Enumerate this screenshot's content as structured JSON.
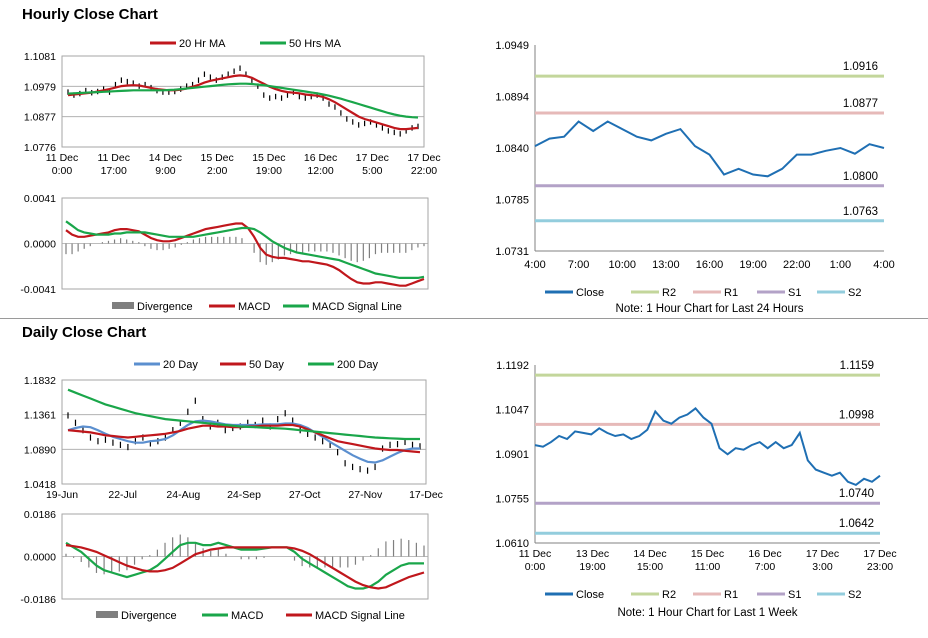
{
  "sections": {
    "hourly_title": "Hourly Close Chart",
    "daily_title": "Daily Close Chart"
  },
  "colors": {
    "price_bar": "#000000",
    "ma_red": "#c0171c",
    "ma_green": "#1aa64a",
    "ma_blue": "#5b8fcf",
    "close_line": "#1f6fb3",
    "r2": "#c3d69b",
    "r1": "#e6b9b8",
    "s1": "#b3a2c7",
    "s2": "#93cddd",
    "divergence": "#7f7f7f",
    "gridline": "#a6a6a6"
  },
  "chart_data": [
    {
      "id": "hourly-price",
      "type": "line",
      "legend": [
        "20 Hr MA",
        "50 Hrs MA"
      ],
      "ylim": [
        1.0776,
        1.1081
      ],
      "yticks": [
        "1.1081",
        "1.0979",
        "1.0877",
        "1.0776"
      ],
      "xticks": [
        "11 Dec\n0:00",
        "11 Dec\n17:00",
        "14 Dec\n9:00",
        "15 Dec\n2:00",
        "15 Dec\n19:00",
        "16 Dec\n12:00",
        "17 Dec\n5:00",
        "17 Dec\n22:00"
      ],
      "close": [
        1.096,
        1.095,
        1.0955,
        1.0965,
        1.0958,
        1.0962,
        1.097,
        1.096,
        1.0985,
        1.1,
        1.0995,
        1.099,
        1.098,
        1.0985,
        1.0975,
        1.0965,
        1.096,
        1.096,
        1.0962,
        1.097,
        1.098,
        1.0985,
        1.1,
        1.102,
        1.101,
        1.1,
        1.101,
        1.102,
        1.103,
        1.104,
        1.102,
        1.1,
        1.098,
        1.095,
        1.094,
        1.0945,
        1.094,
        1.095,
        1.096,
        1.0945,
        1.094,
        1.0945,
        1.095,
        1.094,
        1.092,
        1.091,
        1.089,
        1.087,
        1.086,
        1.085,
        1.0855,
        1.086,
        1.085,
        1.084,
        1.083,
        1.0825,
        1.082,
        1.083,
        1.084,
        1.0845
      ],
      "series": [
        {
          "name": "20 Hr MA",
          "values": [
            1.095,
            1.0952,
            1.0954,
            1.0956,
            1.0958,
            1.0962,
            1.0966,
            1.097,
            1.0975,
            1.098,
            1.0982,
            1.0983,
            1.0982,
            1.0978,
            1.0974,
            1.097,
            1.0968,
            1.0966,
            1.0966,
            1.0968,
            1.0972,
            1.0978,
            1.0984,
            1.0992,
            1.0998,
            1.1002,
            1.1006,
            1.101,
            1.1014,
            1.1016,
            1.1014,
            1.1008,
            1.0998,
            1.0988,
            1.0978,
            1.097,
            1.0964,
            1.096,
            1.0958,
            1.0956,
            1.0952,
            1.095,
            1.0948,
            1.0944,
            1.0936,
            1.0926,
            1.0914,
            1.0902,
            1.089,
            1.0878,
            1.087,
            1.0864,
            1.0858,
            1.0852,
            1.0846,
            1.084,
            1.0836,
            1.0836,
            1.0838,
            1.084
          ]
        },
        {
          "name": "50 Hrs MA",
          "values": [
            1.0955,
            1.0956,
            1.0957,
            1.0958,
            1.0959,
            1.096,
            1.0961,
            1.0962,
            1.0963,
            1.0964,
            1.0965,
            1.0966,
            1.0966,
            1.0966,
            1.0966,
            1.0966,
            1.0966,
            1.0967,
            1.0968,
            1.097,
            1.0972,
            1.0974,
            1.0976,
            1.0978,
            1.098,
            1.0982,
            1.0984,
            1.0986,
            1.0987,
            1.0988,
            1.0988,
            1.0987,
            1.0985,
            1.0983,
            1.098,
            1.0977,
            1.0974,
            1.0971,
            1.0968,
            1.0965,
            1.0962,
            1.0959,
            1.0956,
            1.0952,
            1.0948,
            1.0943,
            1.0938,
            1.0932,
            1.0926,
            1.092,
            1.0914,
            1.0908,
            1.0902,
            1.0896,
            1.089,
            1.0885,
            1.0881,
            1.0878,
            1.0876,
            1.0875
          ]
        }
      ]
    },
    {
      "id": "hourly-macd",
      "type": "line",
      "legend": [
        "Divergence",
        "MACD",
        "MACD Signal Line"
      ],
      "ylim": [
        -0.0041,
        0.0041
      ],
      "yticks": [
        "0.0041",
        "0.0000",
        "-0.0041"
      ],
      "series": [
        {
          "name": "MACD",
          "values": [
            0.0012,
            0.0008,
            0.0006,
            0.0006,
            0.0007,
            0.0008,
            0.0009,
            0.001,
            0.0012,
            0.0013,
            0.0013,
            0.0012,
            0.0011,
            0.0008,
            0.0005,
            0.0003,
            0.0002,
            0.0002,
            0.0003,
            0.0005,
            0.0007,
            0.0009,
            0.0011,
            0.0013,
            0.0014,
            0.0015,
            0.0016,
            0.0017,
            0.0018,
            0.0018,
            0.0014,
            0.0006,
            -0.0004,
            -0.001,
            -0.0012,
            -0.0013,
            -0.0013,
            -0.0014,
            -0.0015,
            -0.0016,
            -0.0016,
            -0.0017,
            -0.0018,
            -0.0019,
            -0.0021,
            -0.0024,
            -0.0028,
            -0.0032,
            -0.0035,
            -0.0036,
            -0.0036,
            -0.0035,
            -0.0035,
            -0.0036,
            -0.0037,
            -0.0038,
            -0.0038,
            -0.0036,
            -0.0034,
            -0.0032
          ]
        },
        {
          "name": "MACD Signal Line",
          "values": [
            0.002,
            0.0016,
            0.0012,
            0.001,
            0.0009,
            0.0008,
            0.0008,
            0.0008,
            0.0009,
            0.0009,
            0.001,
            0.001,
            0.001,
            0.001,
            0.0009,
            0.0008,
            0.0007,
            0.0006,
            0.0006,
            0.0006,
            0.0006,
            0.0006,
            0.0007,
            0.0008,
            0.0009,
            0.001,
            0.0011,
            0.0012,
            0.0013,
            0.0014,
            0.0014,
            0.0013,
            0.001,
            0.0006,
            0.0002,
            -0.0001,
            -0.0004,
            -0.0006,
            -0.0008,
            -0.0009,
            -0.001,
            -0.0011,
            -0.0012,
            -0.0013,
            -0.0014,
            -0.0015,
            -0.0017,
            -0.0019,
            -0.0021,
            -0.0023,
            -0.0025,
            -0.0027,
            -0.0028,
            -0.0029,
            -0.003,
            -0.0031,
            -0.0031,
            -0.0031,
            -0.0031,
            -0.003
          ]
        }
      ]
    },
    {
      "id": "hourly-close-24h",
      "type": "line",
      "ylim": [
        1.0731,
        1.0949
      ],
      "yticks": [
        "1.0949",
        "1.0894",
        "1.0840",
        "1.0785",
        "1.0731"
      ],
      "categories": [
        "4:00",
        "5:00",
        "6:00",
        "7:00",
        "8:00",
        "9:00",
        "10:00",
        "11:00",
        "12:00",
        "13:00",
        "14:00",
        "15:00",
        "16:00",
        "17:00",
        "18:00",
        "19:00",
        "20:00",
        "21:00",
        "22:00",
        "23:00",
        "0:00",
        "1:00",
        "2:00",
        "3:00",
        "4:00"
      ],
      "xticks": [
        "4:00",
        "7:00",
        "10:00",
        "13:00",
        "16:00",
        "19:00",
        "22:00",
        "1:00",
        "4:00"
      ],
      "close": [
        1.0842,
        1.085,
        1.0852,
        1.0868,
        1.0858,
        1.0868,
        1.086,
        1.0852,
        1.0848,
        1.0855,
        1.086,
        1.0842,
        1.0833,
        1.0812,
        1.0818,
        1.0812,
        1.081,
        1.0818,
        1.0833,
        1.0833,
        1.0837,
        1.084,
        1.0834,
        1.0844,
        1.084
      ],
      "levels": [
        {
          "name": "R2",
          "value": 1.0916,
          "label": "1.0916"
        },
        {
          "name": "R1",
          "value": 1.0877,
          "label": "1.0877"
        },
        {
          "name": "S1",
          "value": 1.08,
          "label": "1.0800"
        },
        {
          "name": "S2",
          "value": 1.0763,
          "label": "1.0763"
        }
      ],
      "legend": [
        "Close",
        "R2",
        "R1",
        "S1",
        "S2"
      ],
      "note": "Note: 1 Hour Chart for Last 24 Hours"
    },
    {
      "id": "daily-price",
      "type": "line",
      "legend": [
        "20 Day",
        "50 Day",
        "200 Day"
      ],
      "ylim": [
        1.0418,
        1.1832
      ],
      "yticks": [
        "1.1832",
        "1.1361",
        "1.0890",
        "1.0418"
      ],
      "xticks": [
        "19-Jun",
        "22-Jul",
        "24-Aug",
        "24-Sep",
        "27-Oct",
        "27-Nov",
        "17-Dec"
      ],
      "close": [
        1.135,
        1.125,
        1.115,
        1.105,
        1.1,
        1.102,
        1.098,
        1.095,
        1.092,
        1.1,
        1.105,
        1.097,
        1.1,
        1.105,
        1.115,
        1.125,
        1.14,
        1.155,
        1.13,
        1.12,
        1.125,
        1.115,
        1.118,
        1.12,
        1.125,
        1.122,
        1.128,
        1.12,
        1.13,
        1.138,
        1.128,
        1.115,
        1.11,
        1.105,
        1.1,
        1.095,
        1.085,
        1.07,
        1.065,
        1.062,
        1.06,
        1.065,
        1.09,
        1.095,
        1.096,
        1.099,
        1.095,
        1.093
      ],
      "series": [
        {
          "name": "20 Day",
          "values": [
            1.115,
            1.118,
            1.12,
            1.119,
            1.115,
            1.11,
            1.106,
            1.103,
            1.1,
            1.098,
            1.098,
            1.1,
            1.101,
            1.103,
            1.108,
            1.115,
            1.122,
            1.127,
            1.128,
            1.127,
            1.125,
            1.123,
            1.122,
            1.122,
            1.122,
            1.122,
            1.123,
            1.123,
            1.123,
            1.124,
            1.124,
            1.122,
            1.118,
            1.112,
            1.106,
            1.099,
            1.093,
            1.087,
            1.081,
            1.076,
            1.072,
            1.071,
            1.074,
            1.079,
            1.084,
            1.088,
            1.09,
            1.09
          ]
        },
        {
          "name": "50 Day",
          "values": [
            1.115,
            1.114,
            1.113,
            1.112,
            1.11,
            1.108,
            1.107,
            1.106,
            1.105,
            1.106,
            1.107,
            1.108,
            1.109,
            1.11,
            1.112,
            1.114,
            1.117,
            1.119,
            1.121,
            1.121,
            1.12,
            1.12,
            1.119,
            1.119,
            1.12,
            1.12,
            1.121,
            1.121,
            1.121,
            1.122,
            1.122,
            1.12,
            1.116,
            1.112,
            1.108,
            1.104,
            1.1,
            1.098,
            1.096,
            1.094,
            1.092,
            1.09,
            1.089,
            1.088,
            1.088,
            1.087,
            1.086,
            1.085
          ]
        },
        {
          "name": "200 Day",
          "values": [
            1.17,
            1.166,
            1.162,
            1.158,
            1.154,
            1.15,
            1.147,
            1.144,
            1.141,
            1.138,
            1.136,
            1.134,
            1.132,
            1.13,
            1.129,
            1.128,
            1.127,
            1.126,
            1.125,
            1.124,
            1.123,
            1.122,
            1.121,
            1.12,
            1.1195,
            1.119,
            1.1185,
            1.118,
            1.1175,
            1.117,
            1.116,
            1.115,
            1.114,
            1.113,
            1.112,
            1.111,
            1.11,
            1.109,
            1.108,
            1.107,
            1.106,
            1.105,
            1.1045,
            1.104,
            1.1035,
            1.103,
            1.103,
            1.103
          ]
        }
      ]
    },
    {
      "id": "daily-macd",
      "type": "line",
      "legend": [
        "Divergence",
        "MACD",
        "MACD Signal Line"
      ],
      "ylim": [
        -0.0186,
        0.0186
      ],
      "yticks": [
        "0.0186",
        "0.0000",
        "-0.0186"
      ],
      "series": [
        {
          "name": "MACD",
          "values": [
            0.006,
            0.004,
            0.002,
            -0.001,
            -0.004,
            -0.006,
            -0.007,
            -0.008,
            -0.009,
            -0.008,
            -0.007,
            -0.006,
            -0.004,
            -0.001,
            0.002,
            0.005,
            0.006,
            0.006,
            0.005,
            0.005,
            0.006,
            0.005,
            0.004,
            0.003,
            0.003,
            0.003,
            0.0035,
            0.004,
            0.004,
            0.004,
            0.002,
            -0.001,
            -0.003,
            -0.005,
            -0.007,
            -0.009,
            -0.011,
            -0.013,
            -0.014,
            -0.014,
            -0.013,
            -0.011,
            -0.008,
            -0.006,
            -0.004,
            -0.003,
            -0.003,
            -0.003
          ]
        },
        {
          "name": "MACD Signal Line",
          "values": [
            0.005,
            0.0045,
            0.004,
            0.003,
            0.002,
            0.0005,
            -0.001,
            -0.0025,
            -0.004,
            -0.005,
            -0.006,
            -0.0065,
            -0.0065,
            -0.006,
            -0.005,
            -0.003,
            -0.001,
            0.001,
            0.002,
            0.003,
            0.0035,
            0.004,
            0.004,
            0.004,
            0.004,
            0.004,
            0.004,
            0.004,
            0.004,
            0.004,
            0.0035,
            0.0025,
            0.001,
            -0.001,
            -0.003,
            -0.005,
            -0.007,
            -0.009,
            -0.011,
            -0.0125,
            -0.0135,
            -0.014,
            -0.0135,
            -0.012,
            -0.0105,
            -0.009,
            -0.008,
            -0.007
          ]
        }
      ]
    },
    {
      "id": "weekly-close",
      "type": "line",
      "ylim": [
        1.061,
        1.1192
      ],
      "yticks": [
        "1.1192",
        "1.1047",
        "1.0901",
        "1.0755",
        "1.0610"
      ],
      "xticks": [
        "11 Dec\n0:00",
        "13 Dec\n19:00",
        "14 Dec\n15:00",
        "15 Dec\n11:00",
        "16 Dec\n7:00",
        "17 Dec\n3:00",
        "17 Dec\n23:00"
      ],
      "close": [
        1.093,
        1.0925,
        1.094,
        1.096,
        1.095,
        1.0975,
        1.097,
        1.0965,
        1.0985,
        1.097,
        1.096,
        1.0965,
        1.095,
        1.096,
        1.098,
        1.104,
        1.101,
        1.1,
        1.102,
        1.103,
        1.105,
        1.102,
        1.1,
        1.092,
        1.09,
        1.092,
        1.0915,
        1.093,
        1.094,
        1.092,
        1.094,
        1.092,
        1.093,
        1.097,
        1.088,
        1.085,
        1.084,
        1.083,
        1.084,
        1.081,
        1.08,
        1.082,
        1.081,
        1.083
      ],
      "levels": [
        {
          "name": "R2",
          "value": 1.1159,
          "label": "1.1159"
        },
        {
          "name": "R1",
          "value": 1.0998,
          "label": "1.0998"
        },
        {
          "name": "S1",
          "value": 1.074,
          "label": "1.0740"
        },
        {
          "name": "S2",
          "value": 1.0642,
          "label": "1.0642"
        }
      ],
      "legend": [
        "Close",
        "R2",
        "R1",
        "S1",
        "S2"
      ],
      "note": "Note: 1 Hour Chart for Last 1 Week"
    }
  ]
}
